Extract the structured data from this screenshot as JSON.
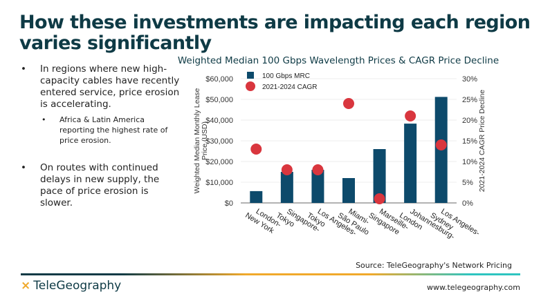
{
  "title": "How these investments are impacting each region varies significantly",
  "bullets": [
    {
      "text": "In regions where new high-capacity cables have recently entered service, price erosion is accelerating.",
      "sub": "Africa & Latin America reporting the highest rate of price erosion."
    },
    {
      "text": "On routes with continued delays in new supply, the pace of price erosion is slower."
    }
  ],
  "chart_data": {
    "type": "bar",
    "title": "Weighted Median 100 Gbps Wavelength Prices & CAGR Price Decline",
    "categories": [
      [
        "London-",
        "New York"
      ],
      [
        "Singapore-",
        "Tokyo"
      ],
      [
        "Los Angeles-",
        "Tokyo"
      ],
      [
        "Miami-",
        "São Paulo"
      ],
      [
        "Marseille-",
        "Singapore"
      ],
      [
        "Johannesburg-",
        "London"
      ],
      [
        "Los Angeles-",
        "Sydney"
      ]
    ],
    "ylabel": "Weighted Median Monthly Lease Price (USD)",
    "y2label": "2021-2024 CAGR Price Decline",
    "ylim": [
      0,
      60000
    ],
    "y2lim": [
      0,
      30
    ],
    "yticks": [
      "$0",
      "$10,000",
      "$20,000",
      "$30,000",
      "$40,000",
      "$50,000",
      "$60,000"
    ],
    "y2ticks": [
      "0%",
      "5%",
      "10%",
      "15%",
      "20%",
      "25%",
      "30%"
    ],
    "series": [
      {
        "name": "100 Gbps MRC",
        "type": "bar",
        "color": "#0d4a6b",
        "values": [
          5700,
          15000,
          16000,
          12000,
          26000,
          38300,
          51200
        ]
      },
      {
        "name": "2021-2024 CAGR",
        "type": "scatter",
        "color": "#d9363e",
        "values": [
          13,
          8,
          8,
          24,
          1,
          21,
          14
        ]
      }
    ],
    "legend": "top-left"
  },
  "footer": {
    "source": "Source: TeleGeography's Network Pricing",
    "logo": "TeleGeography",
    "url": "www.telegeography.com"
  }
}
